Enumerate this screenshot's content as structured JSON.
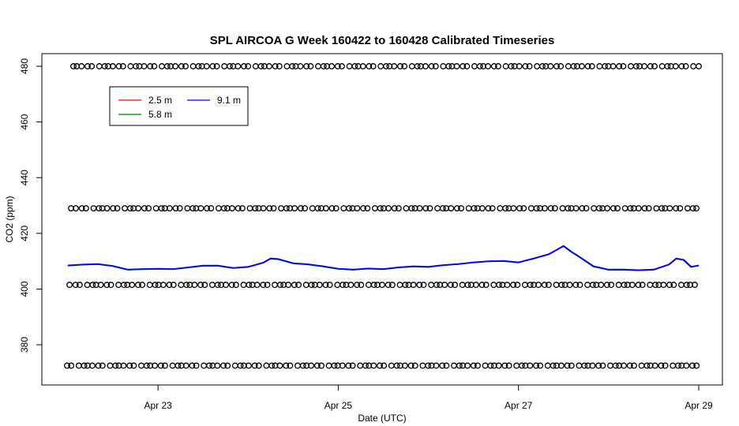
{
  "chart_data": {
    "type": "line",
    "title": "SPL AIRCOA G  Week 160422 to 160428  Calibrated Timeseries",
    "xlabel": "Date (UTC)",
    "ylabel": "CO2 (ppm)",
    "x_domain": [
      "2016-04-22 00:00",
      "2016-04-29 00:00"
    ],
    "ylim": [
      367,
      484
    ],
    "x_ticks": [
      {
        "date": "2016-04-23",
        "label": "Apr 23"
      },
      {
        "date": "2016-04-25",
        "label": "Apr 25"
      },
      {
        "date": "2016-04-27",
        "label": "Apr 27"
      },
      {
        "date": "2016-04-29",
        "label": "Apr 29"
      }
    ],
    "y_ticks": [
      380,
      400,
      420,
      440,
      460,
      480
    ],
    "legend": {
      "position": "top-left",
      "entries": [
        {
          "label": "2.5 m",
          "color": "#ff0000"
        },
        {
          "label": "9.1 m",
          "color": "#0000ff"
        },
        {
          "label": "5.8 m",
          "color": "#008000"
        }
      ]
    },
    "series": [
      {
        "name": "9.1 m",
        "color": "#0000ff",
        "x": [
          "2016-04-22 00:00",
          "2016-04-22 04:00",
          "2016-04-22 08:00",
          "2016-04-22 12:00",
          "2016-04-22 16:00",
          "2016-04-22 20:00",
          "2016-04-23 00:00",
          "2016-04-23 04:00",
          "2016-04-23 08:00",
          "2016-04-23 12:00",
          "2016-04-23 16:00",
          "2016-04-23 20:00",
          "2016-04-24 00:00",
          "2016-04-24 04:00",
          "2016-04-24 06:00",
          "2016-04-24 08:00",
          "2016-04-24 12:00",
          "2016-04-24 16:00",
          "2016-04-24 20:00",
          "2016-04-25 00:00",
          "2016-04-25 04:00",
          "2016-04-25 08:00",
          "2016-04-25 12:00",
          "2016-04-25 16:00",
          "2016-04-25 20:00",
          "2016-04-26 00:00",
          "2016-04-26 04:00",
          "2016-04-26 08:00",
          "2016-04-26 12:00",
          "2016-04-26 16:00",
          "2016-04-26 20:00",
          "2016-04-27 00:00",
          "2016-04-27 04:00",
          "2016-04-27 08:00",
          "2016-04-27 10:00",
          "2016-04-27 12:00",
          "2016-04-27 14:00",
          "2016-04-27 16:00",
          "2016-04-27 20:00",
          "2016-04-28 00:00",
          "2016-04-28 04:00",
          "2016-04-28 08:00",
          "2016-04-28 12:00",
          "2016-04-28 16:00",
          "2016-04-28 18:00",
          "2016-04-28 20:00",
          "2016-04-28 22:00",
          "2016-04-29 00:00"
        ],
        "y": [
          408.5,
          408.8,
          409.0,
          408.3,
          407.0,
          407.2,
          407.3,
          407.2,
          407.8,
          408.4,
          408.4,
          407.6,
          408.0,
          409.5,
          411.0,
          410.8,
          409.3,
          408.9,
          408.2,
          407.3,
          407.0,
          407.4,
          407.2,
          407.8,
          408.2,
          408.0,
          408.6,
          409.0,
          409.6,
          410.0,
          410.1,
          409.6,
          411.0,
          412.5,
          414.0,
          415.5,
          413.5,
          411.8,
          408.2,
          407.0,
          407.0,
          406.8,
          407.0,
          408.8,
          411.0,
          410.5,
          408.0,
          408.5
        ]
      }
    ],
    "flag_rows": [
      480,
      429,
      401.5,
      372.5
    ],
    "flag_marker": "o"
  }
}
